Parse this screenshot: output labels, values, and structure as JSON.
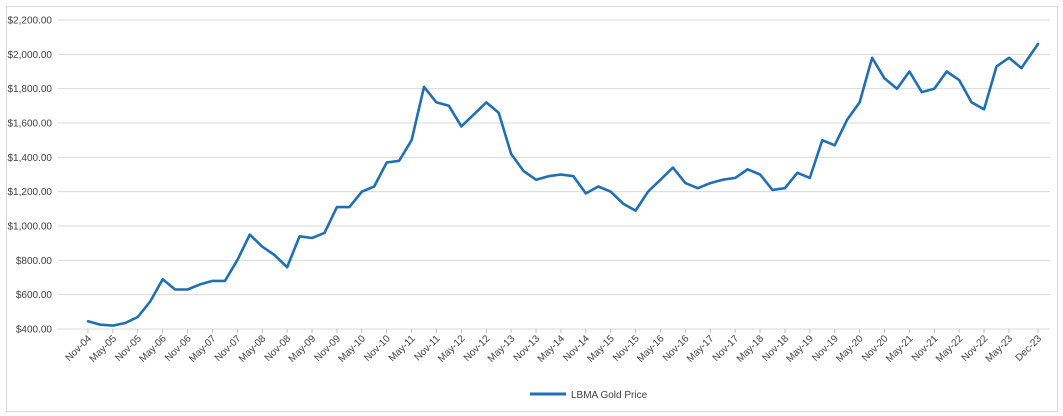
{
  "chart_data": {
    "type": "line",
    "title": "",
    "xlabel": "",
    "ylabel": "",
    "ylim": [
      400,
      2200
    ],
    "y_ticks": [
      "$400.00",
      "$600.00",
      "$800.00",
      "$1,000.00",
      "$1,200.00",
      "$1,400.00",
      "$1,600.00",
      "$1,800.00",
      "$2,000.00",
      "$2,200.00"
    ],
    "x_ticks": [
      "Nov-04",
      "May-05",
      "Nov-05",
      "May-06",
      "Nov-06",
      "May-07",
      "Nov-07",
      "May-08",
      "Nov-08",
      "May-09",
      "Nov-09",
      "May-10",
      "Nov-10",
      "May-11",
      "Nov-11",
      "May-12",
      "Nov-12",
      "May-13",
      "Nov-13",
      "May-14",
      "Nov-14",
      "May-15",
      "Nov-15",
      "May-16",
      "Nov-16",
      "May-17",
      "Nov-17",
      "May-18",
      "Nov-18",
      "May-19",
      "Nov-19",
      "May-20",
      "Nov-20",
      "May-21",
      "Nov-21",
      "May-22",
      "Nov-22",
      "May-23",
      "Dec-23"
    ],
    "grid": true,
    "legend_position": "bottom",
    "series": [
      {
        "name": "LBMA Gold Price",
        "color": "#1f6fb5",
        "x": [
          "Nov-04",
          "Feb-05",
          "May-05",
          "Aug-05",
          "Nov-05",
          "Feb-06",
          "May-06",
          "Aug-06",
          "Nov-06",
          "Feb-07",
          "May-07",
          "Aug-07",
          "Nov-07",
          "Feb-08",
          "May-08",
          "Aug-08",
          "Nov-08",
          "Feb-09",
          "May-09",
          "Aug-09",
          "Nov-09",
          "Feb-10",
          "May-10",
          "Aug-10",
          "Nov-10",
          "Feb-11",
          "May-11",
          "Aug-11",
          "Nov-11",
          "Feb-12",
          "May-12",
          "Aug-12",
          "Nov-12",
          "Feb-13",
          "May-13",
          "Aug-13",
          "Nov-13",
          "Feb-14",
          "May-14",
          "Aug-14",
          "Nov-14",
          "Feb-15",
          "May-15",
          "Aug-15",
          "Nov-15",
          "Feb-16",
          "May-16",
          "Aug-16",
          "Nov-16",
          "Feb-17",
          "May-17",
          "Aug-17",
          "Nov-17",
          "Feb-18",
          "May-18",
          "Aug-18",
          "Nov-18",
          "Feb-19",
          "May-19",
          "Aug-19",
          "Nov-19",
          "Feb-20",
          "May-20",
          "Aug-20",
          "Nov-20",
          "Feb-21",
          "May-21",
          "Aug-21",
          "Nov-21",
          "Feb-22",
          "May-22",
          "Aug-22",
          "Nov-22",
          "Feb-23",
          "May-23",
          "Aug-23",
          "Dec-23"
        ],
        "values": [
          445,
          425,
          420,
          435,
          470,
          560,
          690,
          630,
          630,
          660,
          680,
          680,
          800,
          950,
          880,
          830,
          760,
          940,
          930,
          960,
          1110,
          1110,
          1200,
          1230,
          1370,
          1380,
          1500,
          1810,
          1720,
          1700,
          1580,
          1650,
          1720,
          1660,
          1420,
          1320,
          1270,
          1290,
          1300,
          1290,
          1190,
          1230,
          1200,
          1130,
          1090,
          1200,
          1270,
          1340,
          1250,
          1220,
          1250,
          1270,
          1280,
          1330,
          1300,
          1210,
          1220,
          1310,
          1280,
          1500,
          1470,
          1620,
          1720,
          1980,
          1860,
          1800,
          1900,
          1780,
          1800,
          1900,
          1850,
          1720,
          1680,
          1930,
          1980,
          1920,
          2060
        ]
      }
    ]
  }
}
